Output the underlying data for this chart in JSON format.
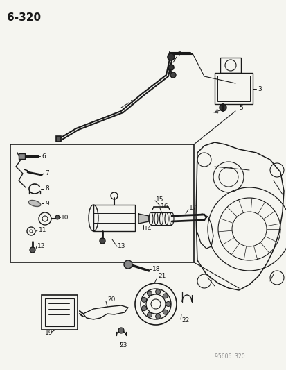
{
  "title": "6-320",
  "footer": "95606  320",
  "bg_color": "#f5f5f0",
  "line_color": "#1a1a1a",
  "title_fontsize": 11,
  "label_fontsize": 6.5,
  "footer_fontsize": 5.5
}
